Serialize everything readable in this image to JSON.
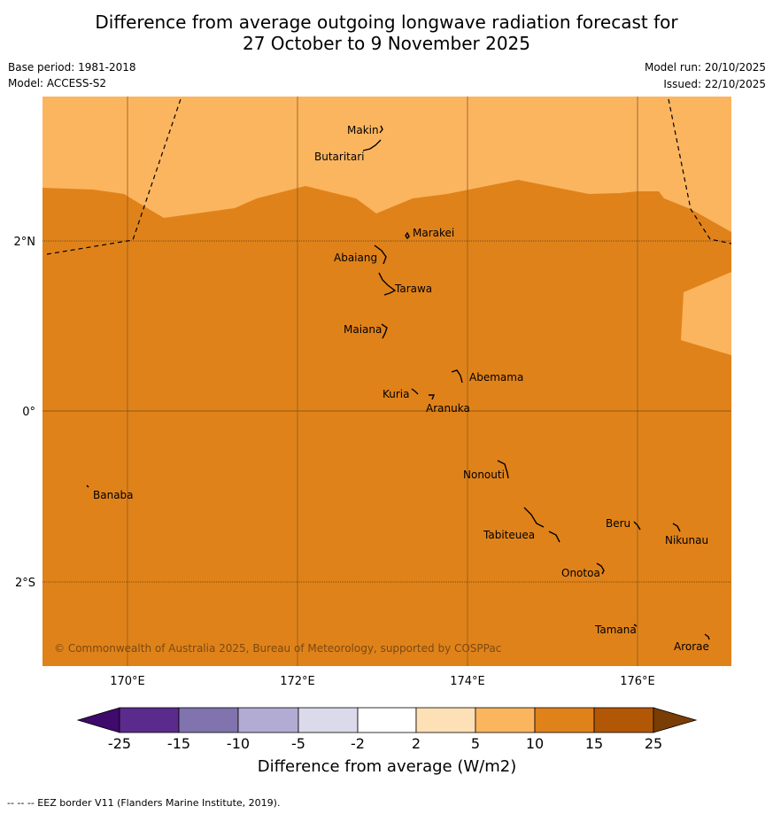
{
  "header": {
    "title_line1": "Difference from average outgoing longwave radiation forecast for",
    "title_line2": "27 October to 9 November 2025",
    "base_period": "Base period: 1981-2018",
    "model": "Model: ACCESS-S2",
    "model_run": "Model run: 20/10/2025",
    "issued": "Issued: 22/10/2025"
  },
  "map": {
    "lon_ticks": [
      "170°E",
      "172°E",
      "174°E",
      "176°E"
    ],
    "lat_ticks": [
      "2°N",
      "0°",
      "2°S"
    ],
    "copyright": "© Commonwealth of Australia 2025, Bureau of Meteorology, supported by COSPPac",
    "places": [
      "Makin",
      "Butaritari",
      "Marakei",
      "Abaiang",
      "Tarawa",
      "Maiana",
      "Abemama",
      "Kuria",
      "Aranuka",
      "Nonouti",
      "Banaba",
      "Beru",
      "Nikunau",
      "Tabiteuea",
      "Onotoa",
      "Tamana",
      "Arorae"
    ],
    "colors": {
      "band_10_15": "#e0821a",
      "band_5_10": "#fbb55f"
    }
  },
  "colorbar": {
    "labels": [
      "-25",
      "-15",
      "-10",
      "-5",
      "-2",
      "2",
      "5",
      "10",
      "15",
      "25"
    ],
    "colors": [
      "#3f0a6b",
      "#5a2b8d",
      "#8173ad",
      "#b2acd4",
      "#dadaea",
      "#ffffff",
      "#fde0b6",
      "#fbb55f",
      "#e0821a",
      "#b25706",
      "#7a3d06"
    ],
    "title": "Difference from average (W/m2)"
  },
  "footnote": "--  --  -- EEZ border V11 (Flanders Marine Institute, 2019)."
}
